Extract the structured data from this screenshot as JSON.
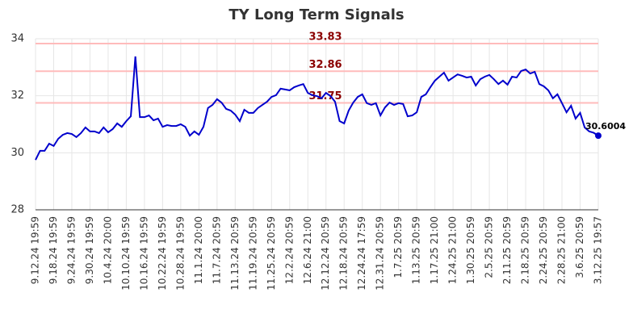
{
  "chart_data": {
    "type": "line",
    "title": "TY Long Term Signals",
    "categories": [
      "9.12.24 19:59",
      null,
      null,
      null,
      "9.18.24 19:59",
      null,
      null,
      null,
      "9.24.24 19:59",
      null,
      null,
      null,
      "9.30.24 19:59",
      null,
      null,
      null,
      "10.4.24 20:00",
      null,
      null,
      null,
      "10.10.24 19:59",
      null,
      null,
      null,
      "10.16.24 19:59",
      null,
      null,
      null,
      "10.22.24 19:59",
      null,
      null,
      null,
      "10.28.24 19:59",
      null,
      null,
      null,
      "11.1.24 20:00",
      null,
      null,
      null,
      "11.7.24 20:59",
      null,
      null,
      null,
      "11.13.24 20:59",
      null,
      null,
      null,
      "11.19.24 20:59",
      null,
      null,
      null,
      "11.25.24 20:59",
      null,
      null,
      null,
      "12.2.24 20:59",
      null,
      null,
      null,
      "12.6.24 21:00",
      null,
      null,
      null,
      "12.12.24 20:59",
      null,
      null,
      null,
      "12.18.24 20:59",
      null,
      null,
      null,
      "12.24.24 17:59",
      null,
      null,
      null,
      "12.31.24 20:59",
      null,
      null,
      null,
      "1.7.25 20:59",
      null,
      null,
      null,
      "1.13.25 20:59",
      null,
      null,
      null,
      "1.17.25 21:00",
      null,
      null,
      null,
      "1.24.25 21:00",
      null,
      null,
      null,
      "1.30.25 20:59",
      null,
      null,
      null,
      "2.5.25 20:59",
      null,
      null,
      null,
      "2.11.25 20:59",
      null,
      null,
      null,
      "2.18.25 20:59",
      null,
      null,
      null,
      "2.24.25 20:59",
      null,
      null,
      null,
      "2.28.25 21:00",
      null,
      null,
      null,
      "3.6.25 20:59",
      null,
      null,
      null,
      "3.12.25 19:57"
    ],
    "series": [
      {
        "color": "#0000cc",
        "values": [
          29.75,
          30.07,
          30.07,
          30.32,
          30.24,
          30.49,
          30.63,
          30.69,
          30.66,
          30.55,
          30.69,
          30.89,
          30.75,
          30.75,
          30.69,
          30.89,
          30.72,
          30.83,
          31.03,
          30.91,
          31.11,
          31.28,
          33.38,
          31.25,
          31.25,
          31.31,
          31.14,
          31.2,
          30.91,
          30.97,
          30.94,
          30.94,
          31.0,
          30.91,
          30.6,
          30.75,
          30.63,
          30.91,
          31.57,
          31.68,
          31.88,
          31.76,
          31.54,
          31.48,
          31.34,
          31.11,
          31.51,
          31.4,
          31.4,
          31.57,
          31.68,
          31.79,
          31.96,
          32.02,
          32.25,
          32.22,
          32.19,
          32.3,
          32.36,
          32.41,
          32.1,
          32.02,
          31.99,
          31.91,
          32.1,
          31.99,
          31.79,
          31.11,
          31.03,
          31.48,
          31.76,
          31.96,
          32.05,
          31.74,
          31.68,
          31.74,
          31.31,
          31.59,
          31.76,
          31.68,
          31.74,
          31.71,
          31.28,
          31.31,
          31.42,
          31.96,
          32.05,
          32.3,
          32.53,
          32.67,
          32.81,
          32.53,
          32.64,
          32.75,
          32.7,
          32.64,
          32.67,
          32.36,
          32.58,
          32.67,
          32.73,
          32.58,
          32.41,
          32.53,
          32.39,
          32.67,
          32.64,
          32.87,
          32.92,
          32.78,
          32.84,
          32.41,
          32.33,
          32.19,
          31.91,
          32.05,
          31.74,
          31.42,
          31.65,
          31.2,
          31.4,
          30.89,
          30.75,
          30.7,
          30.6004
        ]
      }
    ],
    "hlines": [
      33.83,
      32.86,
      31.75
    ],
    "hline_color": "#ffbbbb",
    "hline_label_color": "#8b0000",
    "ylim": [
      28,
      34
    ],
    "yticks": [
      28,
      30,
      32,
      34
    ],
    "grid": true
  }
}
